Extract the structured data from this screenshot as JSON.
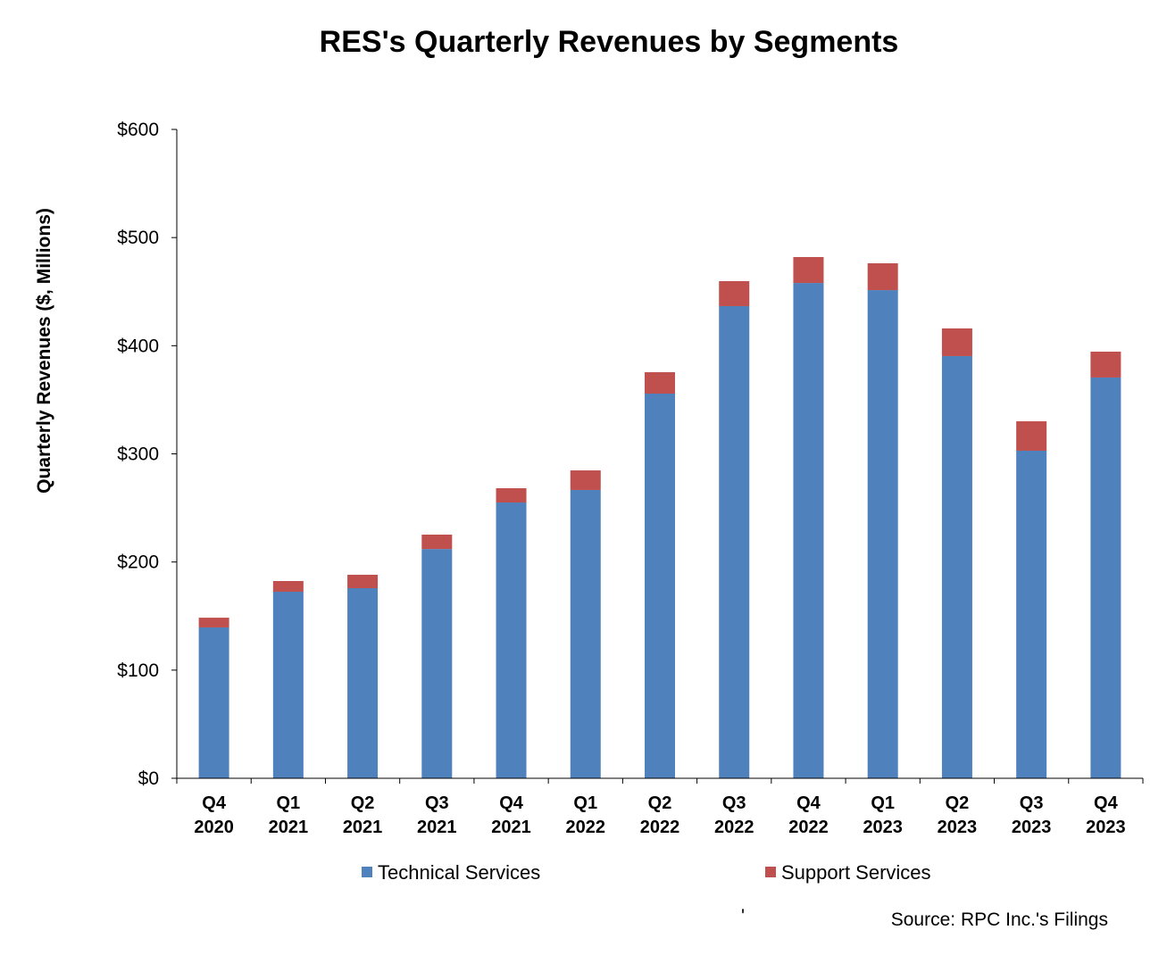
{
  "chart_data": {
    "type": "bar",
    "stacked": true,
    "title": "RES's Quarterly Revenues by Segments",
    "xlabel": "",
    "ylabel": "Quarterly Revenues ($, Millions)",
    "ylim": [
      0,
      600
    ],
    "yticks": [
      "$0",
      "$100",
      "$200",
      "$300",
      "$400",
      "$500",
      "$600"
    ],
    "ytick_values": [
      0,
      100,
      200,
      300,
      400,
      500,
      600
    ],
    "categories": [
      [
        "Q4",
        "2020"
      ],
      [
        "Q1",
        "2021"
      ],
      [
        "Q2",
        "2021"
      ],
      [
        "Q3",
        "2021"
      ],
      [
        "Q4",
        "2021"
      ],
      [
        "Q1",
        "2022"
      ],
      [
        "Q2",
        "2022"
      ],
      [
        "Q3",
        "2022"
      ],
      [
        "Q4",
        "2022"
      ],
      [
        "Q1",
        "2023"
      ],
      [
        "Q2",
        "2023"
      ],
      [
        "Q3",
        "2023"
      ],
      [
        "Q4",
        "2023"
      ]
    ],
    "series": [
      {
        "name": "Technical Services",
        "color": "#4f81bd",
        "values": [
          139.5,
          172.5,
          175.8,
          212.0,
          255.0,
          266.6,
          355.7,
          436.6,
          458.0,
          451.4,
          390.4,
          302.9,
          370.6
        ]
      },
      {
        "name": "Support Services",
        "color": "#c0504d",
        "values": [
          9.0,
          9.9,
          12.4,
          13.3,
          13.2,
          18.1,
          19.8,
          23.1,
          24.0,
          24.8,
          25.6,
          27.2,
          23.9
        ]
      }
    ],
    "grid": false,
    "legend_placement": "bottom"
  },
  "footer": {
    "mark": "'",
    "source": "Source: RPC Inc.'s Filings"
  }
}
